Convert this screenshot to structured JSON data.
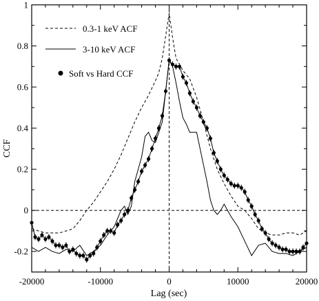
{
  "chart_data": {
    "type": "line",
    "title": "",
    "xlabel": "Lag (sec)",
    "ylabel": "CCF",
    "xlim": [
      -20000,
      20000
    ],
    "ylim": [
      -0.3,
      1.0
    ],
    "grid": false,
    "legend_position": "top-left",
    "xticks": [
      -20000,
      -10000,
      0,
      10000,
      20000
    ],
    "xtick_labels": [
      "-20000",
      "-10000",
      "0",
      "10000",
      "20000"
    ],
    "yticks": [
      -0.2,
      0,
      0.2,
      0.4,
      0.6,
      0.8,
      1.0
    ],
    "ytick_labels": [
      "-0.2",
      "0",
      "0.2",
      "0.4",
      "0.6",
      "0.8",
      "1"
    ],
    "reference_lines": [
      {
        "orientation": "horizontal",
        "value": 0,
        "style": "dashed"
      },
      {
        "orientation": "vertical",
        "value": 0,
        "style": "dashed"
      }
    ],
    "series": [
      {
        "name": "0.3-1 keV ACF",
        "style": "dashed",
        "x": [
          -20000,
          -19000,
          -18000,
          -17000,
          -16000,
          -15000,
          -14000,
          -13000,
          -12000,
          -11000,
          -10000,
          -9000,
          -8000,
          -7000,
          -6000,
          -5000,
          -4000,
          -3000,
          -2000,
          -1500,
          -1000,
          -500,
          0,
          500,
          1000,
          1500,
          2000,
          3000,
          4000,
          5000,
          6000,
          7000,
          8000,
          9000,
          10000,
          11000,
          12000,
          13000,
          14000,
          15000,
          16000,
          17000,
          18000,
          19000,
          20000
        ],
        "y": [
          -0.09,
          -0.1,
          -0.11,
          -0.11,
          -0.11,
          -0.1,
          -0.09,
          -0.05,
          0.0,
          0.04,
          0.09,
          0.14,
          0.2,
          0.27,
          0.35,
          0.43,
          0.5,
          0.56,
          0.63,
          0.67,
          0.74,
          0.85,
          0.96,
          0.84,
          0.74,
          0.71,
          0.68,
          0.64,
          0.55,
          0.43,
          0.3,
          0.2,
          0.13,
          0.07,
          0.02,
          0.0,
          -0.04,
          -0.09,
          -0.11,
          -0.12,
          -0.12,
          -0.11,
          -0.11,
          -0.12,
          -0.1
        ]
      },
      {
        "name": "3-10 keV ACF",
        "style": "solid",
        "x": [
          -20000,
          -19000,
          -18000,
          -17000,
          -16000,
          -15000,
          -14000,
          -13000,
          -12000,
          -11000,
          -10000,
          -9000,
          -8000,
          -7000,
          -6500,
          -6000,
          -5500,
          -5000,
          -4500,
          -4000,
          -3500,
          -3000,
          -2500,
          -2000,
          -1500,
          -1000,
          -500,
          0,
          500,
          1000,
          1500,
          2000,
          2500,
          3000,
          3500,
          4000,
          4500,
          5000,
          5500,
          6000,
          6500,
          7000,
          7500,
          8000,
          9000,
          10000,
          11000,
          12000,
          13000,
          14000,
          15000,
          16000,
          17000,
          18000,
          19000,
          20000
        ],
        "y": [
          -0.18,
          -0.2,
          -0.18,
          -0.2,
          -0.21,
          -0.19,
          -0.2,
          -0.17,
          -0.22,
          -0.2,
          -0.17,
          -0.12,
          -0.08,
          0.0,
          0.02,
          -0.02,
          0.02,
          0.14,
          0.2,
          0.26,
          0.36,
          0.38,
          0.34,
          0.33,
          0.38,
          0.43,
          0.58,
          0.73,
          0.7,
          0.62,
          0.53,
          0.45,
          0.42,
          0.38,
          0.38,
          0.38,
          0.3,
          0.22,
          0.14,
          0.05,
          0.0,
          -0.02,
          0.0,
          0.03,
          -0.03,
          -0.08,
          -0.15,
          -0.22,
          -0.17,
          -0.16,
          -0.2,
          -0.21,
          -0.21,
          -0.22,
          -0.2,
          -0.18
        ]
      },
      {
        "name": "Soft vs Hard CCF",
        "style": "markers-errorbars",
        "error": 0.015,
        "x": [
          -20000,
          -19500,
          -19000,
          -18500,
          -18000,
          -17500,
          -17000,
          -16500,
          -16000,
          -15500,
          -15000,
          -14500,
          -14000,
          -13500,
          -13000,
          -12500,
          -12000,
          -11500,
          -11000,
          -10500,
          -10000,
          -9500,
          -9000,
          -8500,
          -8000,
          -7500,
          -7000,
          -6500,
          -6000,
          -5500,
          -5000,
          -4500,
          -4000,
          -3500,
          -3000,
          -2500,
          -2000,
          -1500,
          -1000,
          -500,
          0,
          500,
          1000,
          1500,
          2000,
          2500,
          3000,
          3500,
          4000,
          4500,
          5000,
          5500,
          6000,
          6500,
          7000,
          7500,
          8000,
          8500,
          9000,
          9500,
          10000,
          10500,
          11000,
          11500,
          12000,
          12500,
          13000,
          13500,
          14000,
          14500,
          15000,
          15500,
          16000,
          16500,
          17000,
          17500,
          18000,
          18500,
          19000,
          19500,
          20000
        ],
        "y": [
          -0.06,
          -0.13,
          -0.14,
          -0.12,
          -0.14,
          -0.13,
          -0.15,
          -0.17,
          -0.17,
          -0.18,
          -0.17,
          -0.2,
          -0.19,
          -0.21,
          -0.22,
          -0.22,
          -0.24,
          -0.22,
          -0.21,
          -0.18,
          -0.15,
          -0.12,
          -0.1,
          -0.1,
          -0.11,
          -0.07,
          -0.05,
          -0.02,
          0.0,
          0.06,
          0.1,
          0.14,
          0.19,
          0.22,
          0.25,
          0.3,
          0.35,
          0.4,
          0.46,
          0.58,
          0.73,
          0.71,
          0.7,
          0.7,
          0.65,
          0.62,
          0.57,
          0.53,
          0.5,
          0.46,
          0.43,
          0.4,
          0.35,
          0.28,
          0.24,
          0.2,
          0.17,
          0.15,
          0.13,
          0.12,
          0.12,
          0.11,
          0.09,
          0.05,
          0.02,
          -0.02,
          -0.05,
          -0.09,
          -0.11,
          -0.14,
          -0.16,
          -0.17,
          -0.18,
          -0.19,
          -0.19,
          -0.2,
          -0.2,
          -0.2,
          -0.2,
          -0.18,
          -0.16
        ]
      }
    ]
  },
  "legend": {
    "items": [
      {
        "label": "0.3-1 keV ACF"
      },
      {
        "label": "3-10 keV ACF"
      },
      {
        "label": "Soft vs Hard CCF"
      }
    ]
  }
}
